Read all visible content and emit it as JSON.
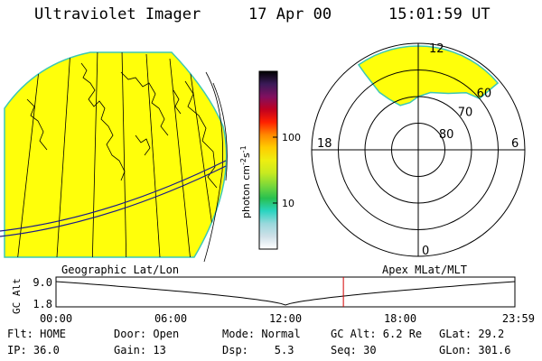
{
  "header": {
    "title": "Ultraviolet Imager",
    "date": "17 Apr 00",
    "time": "15:01:59 UT"
  },
  "colorbar": {
    "label": "photon cm",
    "label_exp1": "-2",
    "label_s": "s",
    "label_exp2": "-1",
    "ticks": [
      "100",
      "10"
    ],
    "tick_values": [
      100,
      10
    ],
    "range": [
      2,
      1000
    ],
    "scale": "log",
    "colors": [
      "#ffffff",
      "#cfe0e8",
      "#9ad8dc",
      "#2ad4c0",
      "#28c050",
      "#7ad83a",
      "#c8ea20",
      "#eeee10",
      "#ffcc00",
      "#ff8800",
      "#ff2000",
      "#c00020",
      "#801060",
      "#3a1a58",
      "#000000"
    ]
  },
  "polar": {
    "mlt_labels": {
      "top": "12",
      "right": "6",
      "left": "18",
      "bottom": "0"
    },
    "lat_labels": [
      "60",
      "70",
      "80"
    ],
    "lat_values": [
      60,
      70,
      80
    ],
    "fill_color": "#ffff0a"
  },
  "map": {
    "fill_color": "#ffff0a",
    "outline_color": "#3cc8b4"
  },
  "timeline": {
    "left_label": "Geographic Lat/Lon",
    "right_label": "Apex MLat/MLT",
    "axis_label": "GC Alt",
    "y_ticks": [
      "9.0",
      "1.8"
    ],
    "x_ticks": [
      "00:00",
      "06:00",
      "12:00",
      "18:00",
      "23:59"
    ],
    "current_time_hours": 15.03,
    "cursor_color": "#d40000"
  },
  "info": {
    "row1": [
      "Flt: HOME",
      "Door: Open",
      "Mode: Normal",
      "GC Alt: 6.2 Re",
      "GLat: 29.2"
    ],
    "row2": [
      "IP: 36.0",
      "Gain: 13",
      "Dsp:    5.3",
      "Seq: 30",
      "GLon: 301.6"
    ]
  }
}
